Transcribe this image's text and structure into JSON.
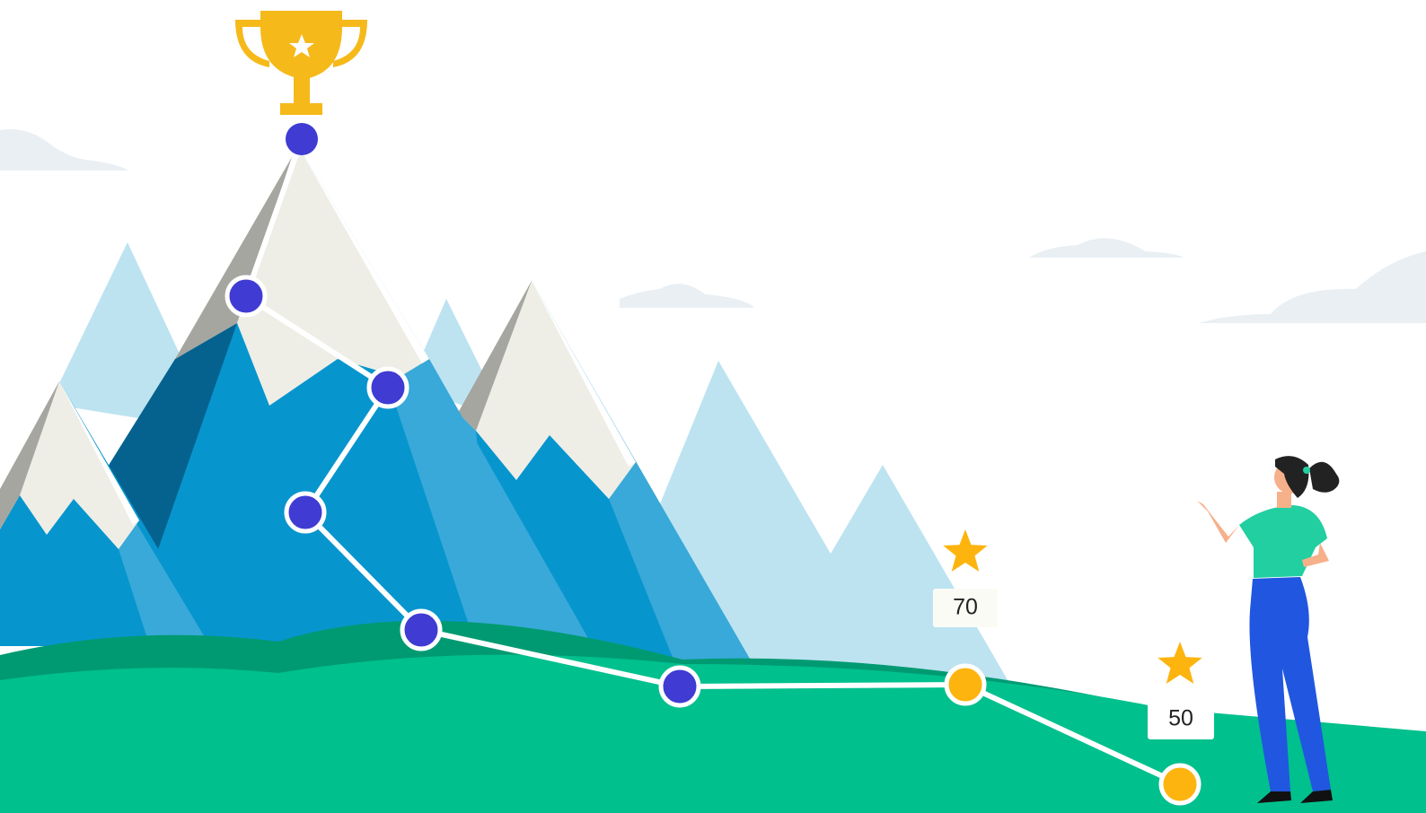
{
  "badges": [
    {
      "label": 70
    },
    {
      "label": 50
    }
  ]
}
